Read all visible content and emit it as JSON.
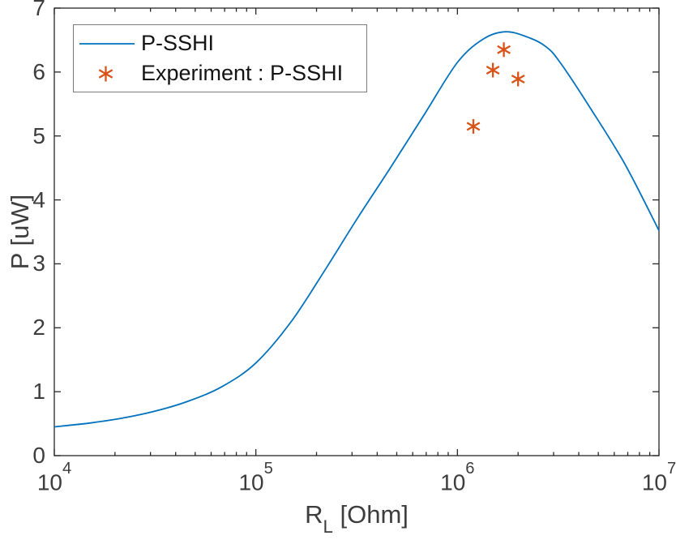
{
  "figure": {
    "background": "#ffffff",
    "axis_color": "#262626",
    "tick_label_color": "#3d3d3d"
  },
  "chart_data": {
    "type": "line",
    "title": "",
    "x_scale": "log",
    "xlim": [
      10000,
      10000000
    ],
    "ylim": [
      0,
      7
    ],
    "grid": false,
    "xlabel": {
      "main": "R",
      "sub": "L",
      "rest": " [Ohm]"
    },
    "ylabel": "P [uW]",
    "x_ticks": [
      {
        "value": 10000,
        "base": "10",
        "exp": "4"
      },
      {
        "value": 100000,
        "base": "10",
        "exp": "5"
      },
      {
        "value": 1000000,
        "base": "10",
        "exp": "6"
      },
      {
        "value": 10000000,
        "base": "10",
        "exp": "7"
      }
    ],
    "x_minor_subs": [
      2,
      3,
      4,
      5,
      6,
      7,
      8,
      9
    ],
    "y_ticks": [
      0,
      1,
      2,
      3,
      4,
      5,
      6,
      7
    ],
    "legend_position": "northwest",
    "series": [
      {
        "name": "P-SSHI",
        "type": "line",
        "color": "#0072BD",
        "points": [
          [
            10000,
            0.45
          ],
          [
            15000,
            0.51
          ],
          [
            22000,
            0.59
          ],
          [
            32000,
            0.7
          ],
          [
            46000,
            0.85
          ],
          [
            68000,
            1.08
          ],
          [
            100000,
            1.45
          ],
          [
            150000,
            2.1
          ],
          [
            220000,
            2.9
          ],
          [
            320000,
            3.72
          ],
          [
            460000,
            4.48
          ],
          [
            680000,
            5.32
          ],
          [
            1000000,
            6.15
          ],
          [
            1350000,
            6.52
          ],
          [
            1750000,
            6.63
          ],
          [
            2300000,
            6.53
          ],
          [
            2740000,
            6.4
          ],
          [
            3200000,
            6.17
          ],
          [
            4600000,
            5.42
          ],
          [
            6800000,
            4.55
          ],
          [
            10000000,
            3.52
          ]
        ]
      },
      {
        "name": "Experiment : P-SSHI",
        "type": "scatter",
        "marker": "asterisk",
        "color": "#D95319",
        "points": [
          [
            1200000,
            5.15
          ],
          [
            1500000,
            6.03
          ],
          [
            1700000,
            6.35
          ],
          [
            2000000,
            5.89
          ]
        ]
      }
    ]
  }
}
